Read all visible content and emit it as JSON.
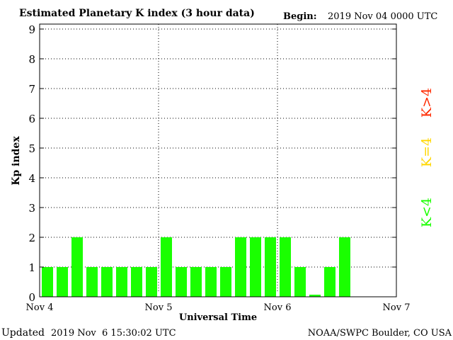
{
  "chart_data": {
    "type": "bar",
    "title": "Estimated Planetary K index (3 hour data)",
    "begin_label": "Begin:",
    "begin_value": "2019 Nov 04 0000 UTC",
    "xlabel": "Universal Time",
    "ylabel": "Kp index",
    "ylim": [
      0,
      9
    ],
    "yticks": [
      "0",
      "1",
      "2",
      "3",
      "4",
      "5",
      "6",
      "7",
      "8",
      "9"
    ],
    "xticks": [
      "Nov 4",
      "Nov 5",
      "Nov 6",
      "Nov 7"
    ],
    "grid": true,
    "interval_hours": 3,
    "values": [
      1,
      1,
      2,
      1,
      1,
      1,
      1,
      1,
      2,
      1,
      1,
      1,
      1,
      2,
      2,
      2,
      2,
      1,
      0.07,
      1,
      2
    ],
    "bar_color": "#1aff00",
    "legend": [
      {
        "label": "K<4",
        "color": "#1aff00"
      },
      {
        "label": "K=4",
        "color": "#ffd700"
      },
      {
        "label": "K>4",
        "color": "#ff2a00"
      }
    ],
    "legend_placement": "right"
  },
  "footer": {
    "updated_label": "Updated",
    "updated_value": "2019 Nov  6 15:30:02 UTC",
    "source": "NOAA/SWPC Boulder, CO USA"
  }
}
